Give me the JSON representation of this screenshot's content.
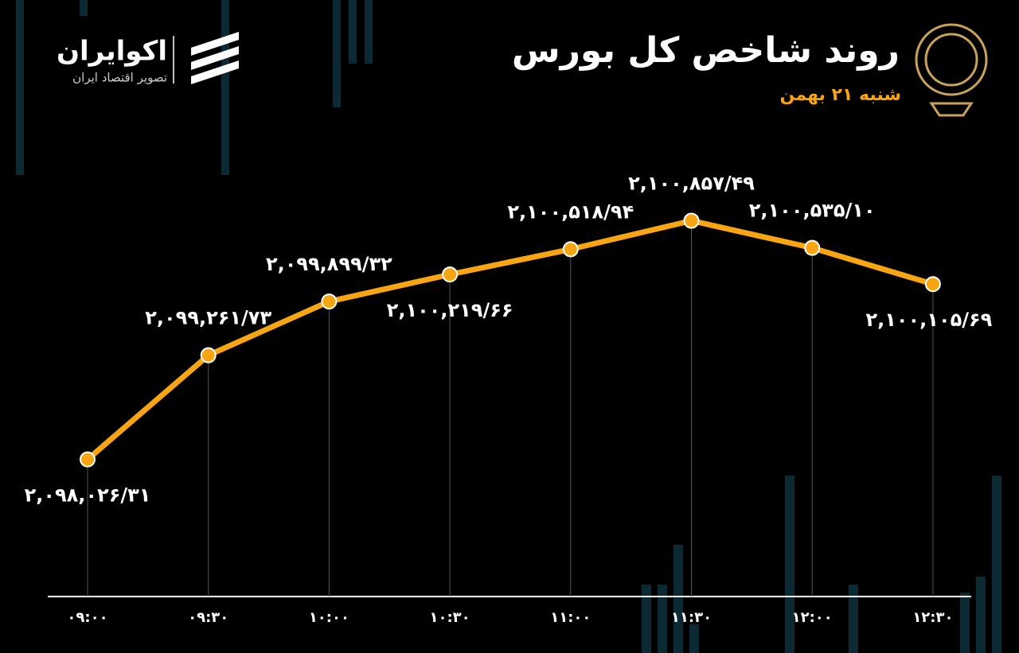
{
  "brand": {
    "name": "اکوایران",
    "tagline": "تصویر اقتصاد ایران"
  },
  "chart_data": {
    "type": "line",
    "title": "روند شاخص کل بورس",
    "subtitle": "شنبه ۲۱ بهمن",
    "categories": [
      "۰۹:۰۰",
      "۰۹:۳۰",
      "۱۰:۰۰",
      "۱۰:۳۰",
      "۱۱:۰۰",
      "۱۱:۳۰",
      "۱۲:۰۰",
      "۱۲:۳۰"
    ],
    "values": [
      2098026.31,
      2099261.73,
      2099899.32,
      2100219.66,
      2100518.94,
      2100857.49,
      2100535.1,
      2100105.69
    ],
    "value_labels": [
      "۲,۰۹۸,۰۲۶/۳۱",
      "۲,۰۹۹,۲۶۱/۷۳",
      "۲,۰۹۹,۸۹۹/۳۲",
      "۲,۱۰۰,۲۱۹/۶۶",
      "۲,۱۰۰,۵۱۸/۹۴",
      "۲,۱۰۰,۸۵۷/۴۹",
      "۲,۱۰۰,۵۳۵/۱۰",
      "۲,۱۰۰,۱۰۵/۶۹"
    ],
    "color": "#f7a513",
    "ylim": [
      2096400,
      2101400
    ]
  }
}
